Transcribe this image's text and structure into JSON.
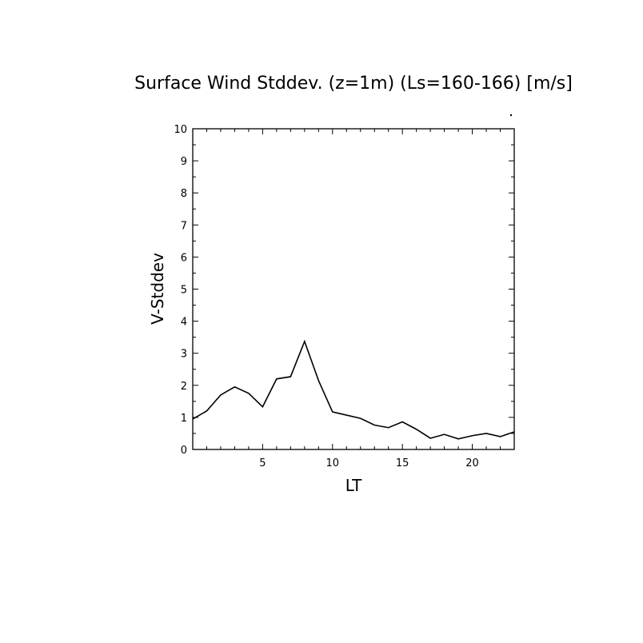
{
  "chart_data": {
    "type": "line",
    "title": "Surface Wind Stddev. (z=1m) (Ls=160-166) [m/s]",
    "xlabel": "LT",
    "ylabel": "V-Stddev",
    "xlim": [
      0,
      23
    ],
    "ylim": [
      0,
      10
    ],
    "xticks": [
      5,
      10,
      15,
      20
    ],
    "yticks": [
      0,
      1,
      2,
      3,
      4,
      5,
      6,
      7,
      8,
      9,
      10
    ],
    "grid": false,
    "x": [
      0,
      1,
      2,
      3,
      4,
      5,
      6,
      7,
      8,
      9,
      10,
      11,
      12,
      13,
      14,
      15,
      16,
      17,
      18,
      19,
      20,
      21,
      22,
      23
    ],
    "series": [
      {
        "values": [
          0.95,
          1.2,
          1.7,
          1.95,
          1.75,
          1.33,
          2.2,
          2.27,
          3.37,
          2.15,
          1.17,
          1.07,
          0.97,
          0.76,
          0.68,
          0.86,
          0.63,
          0.35,
          0.47,
          0.33,
          0.43,
          0.5,
          0.4,
          0.55
        ]
      }
    ]
  }
}
